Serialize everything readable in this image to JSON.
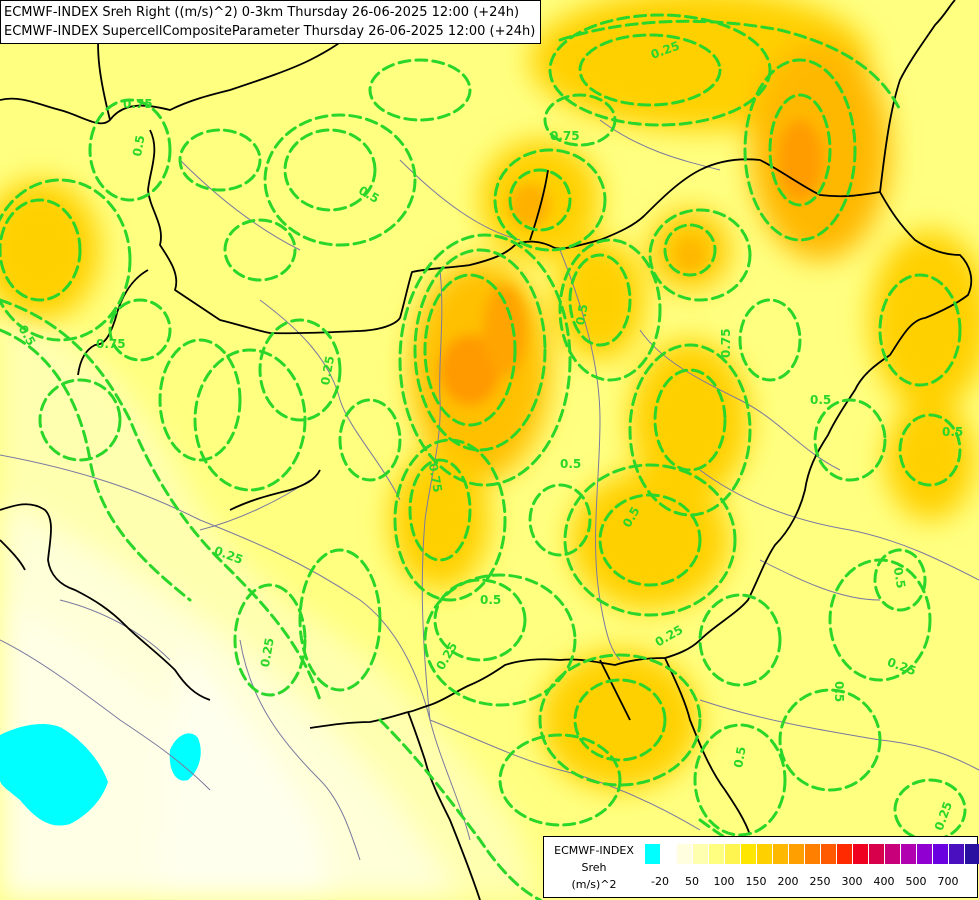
{
  "titles": {
    "line1": "ECMWF-INDEX Sreh Right ((m/s)^2) 0-3km Thursday 26-06-2025 12:00 (+24h)",
    "line2": "ECMWF-INDEX SupercellCompositeParameter Thursday 26-06-2025 12:00 (+24h)"
  },
  "legend": {
    "model": "ECMWF-INDEX",
    "variable": "Sreh",
    "unit": "(m/s)^2",
    "colors": [
      "#00ffff",
      "#ffffff",
      "#ffffe0",
      "#ffffb0",
      "#ffff80",
      "#fff550",
      "#ffe600",
      "#ffd000",
      "#ffb800",
      "#ffa000",
      "#ff8000",
      "#ff5a00",
      "#ff2a00",
      "#f00020",
      "#d8004a",
      "#c8007a",
      "#b000b0",
      "#9000d0",
      "#6a00e0",
      "#4a10c0",
      "#2a10a0",
      "#000080"
    ],
    "ticks": [
      "-20",
      "50",
      "100",
      "150",
      "200",
      "250",
      "300",
      "400",
      "500",
      "700"
    ]
  },
  "contour_labels": [
    "0.25",
    "0.5",
    "0.75"
  ],
  "colors": {
    "contour": "#2ad62a",
    "border": "#000000",
    "river": "#7a7aa0"
  }
}
